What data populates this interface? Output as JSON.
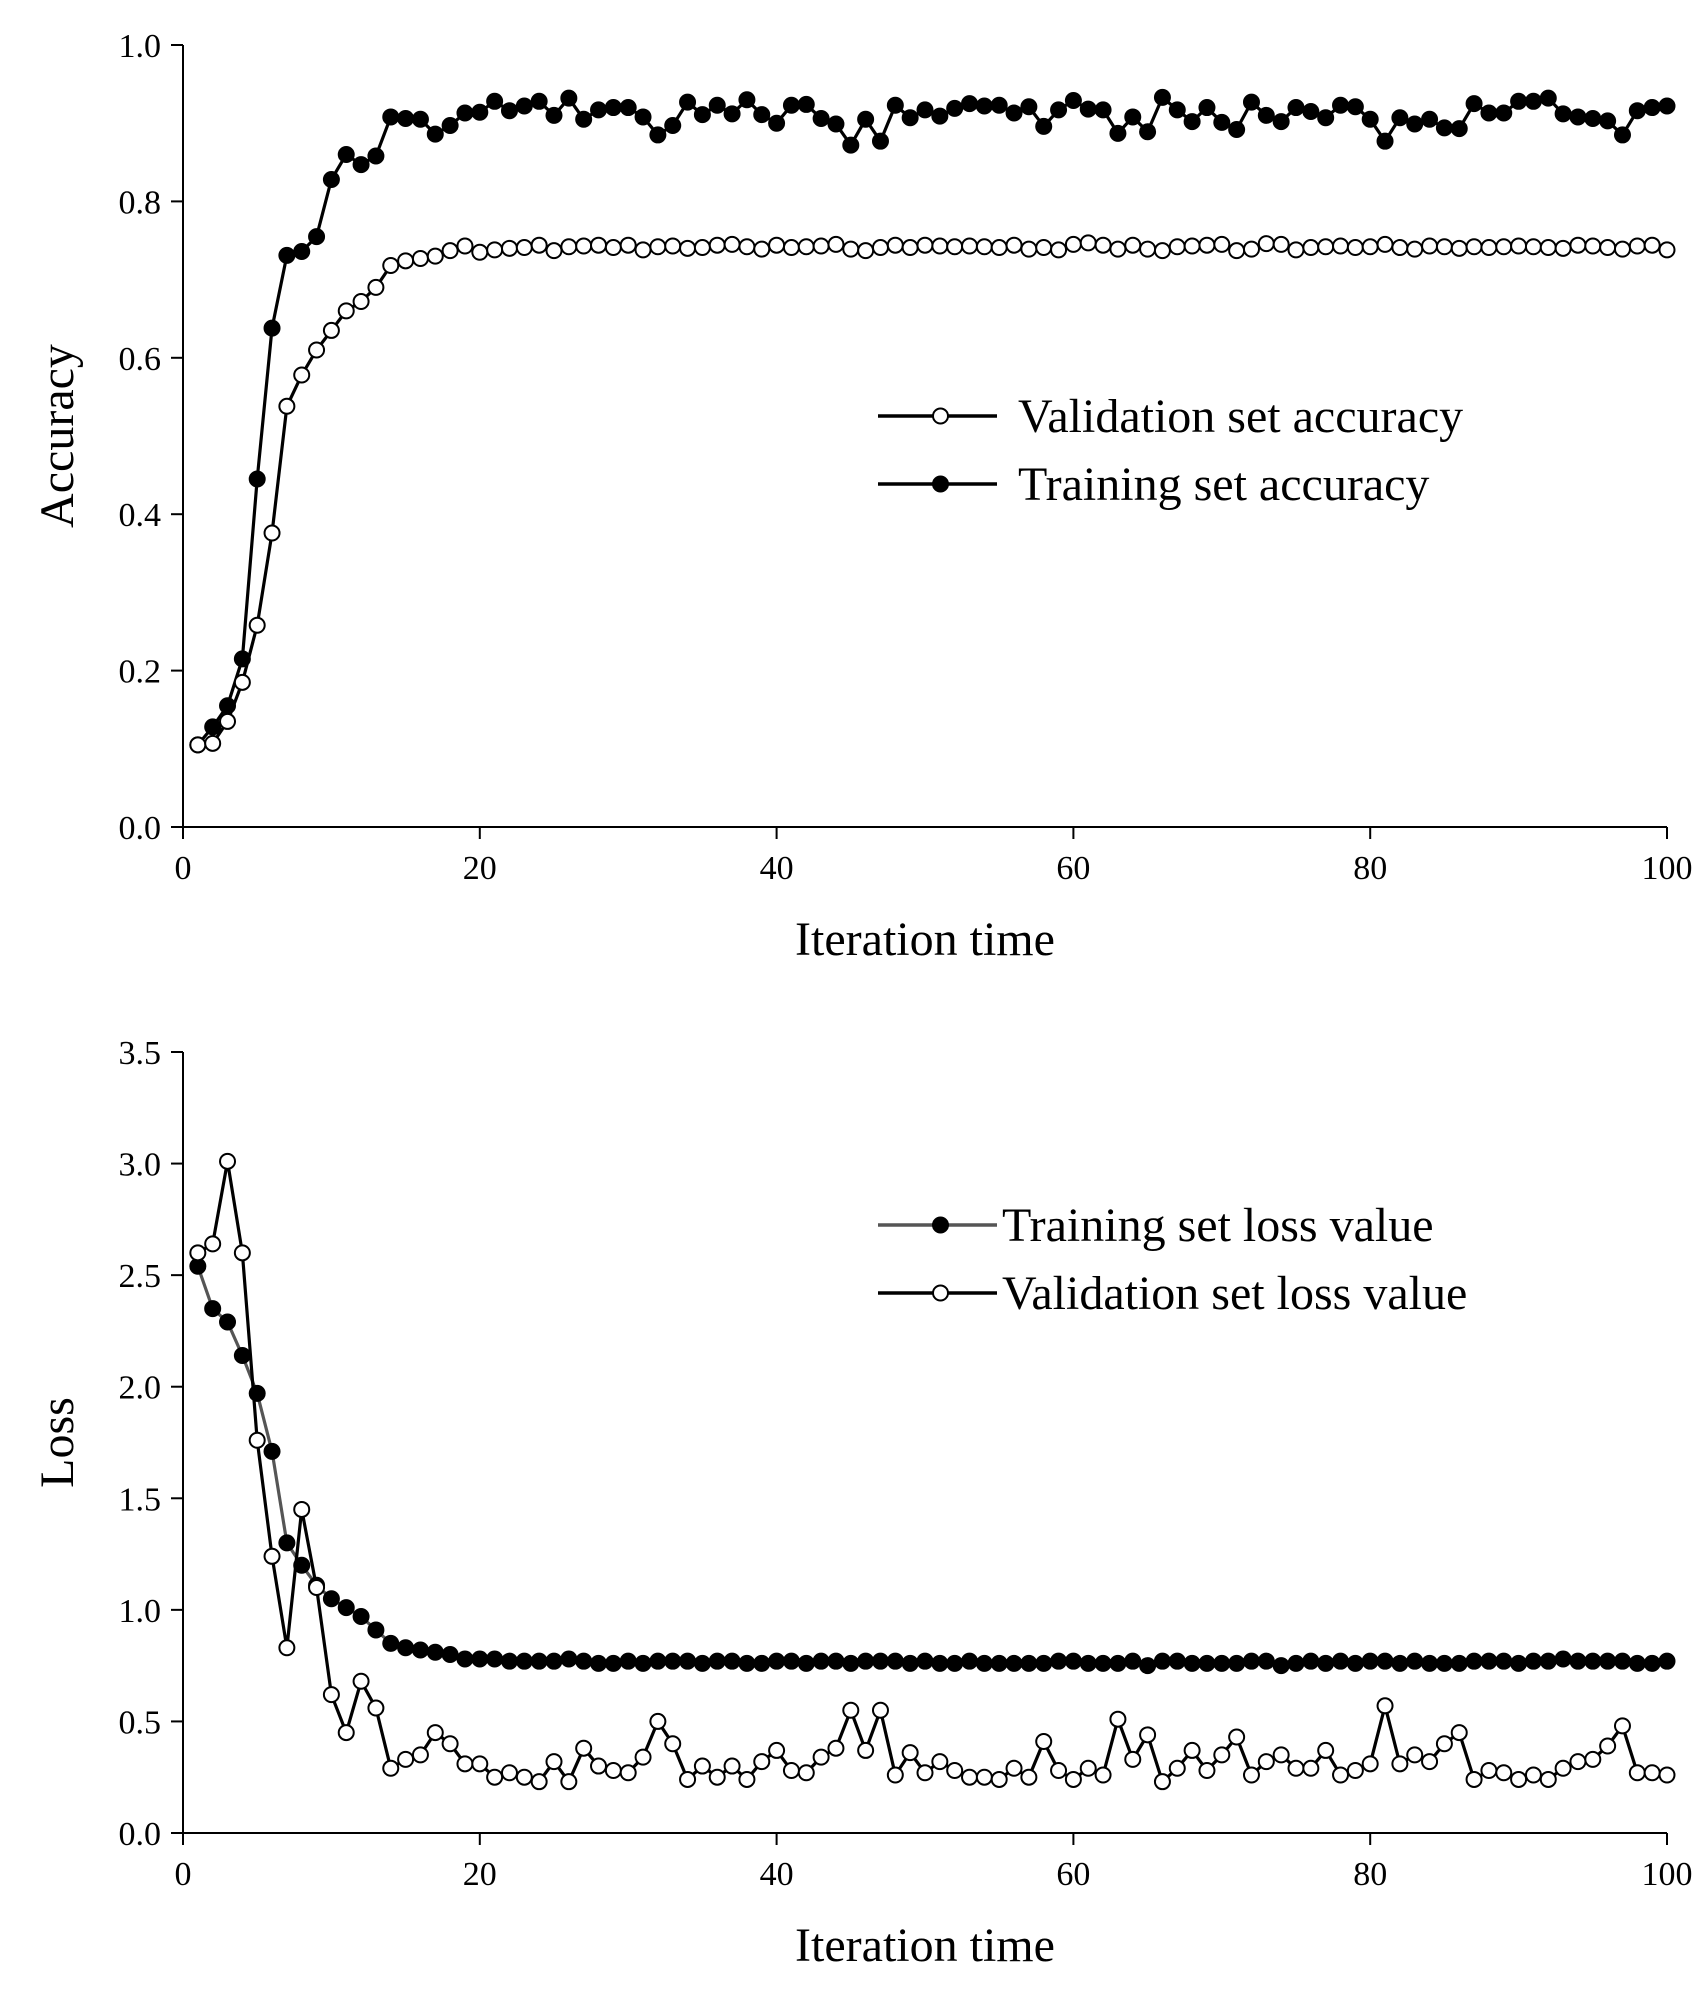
{
  "chart_data": [
    {
      "id": "accuracy",
      "type": "line",
      "xlabel": "Iteration time",
      "ylabel": "Accuracy",
      "xlim": [
        0,
        100
      ],
      "ylim": [
        0.0,
        1.0
      ],
      "x_ticks": [
        0,
        20,
        40,
        60,
        80,
        100
      ],
      "x_tick_labels": [
        "0",
        "20",
        "40",
        "60",
        "80",
        "100"
      ],
      "y_ticks": [
        0.0,
        0.2,
        0.4,
        0.6,
        0.8,
        1.0
      ],
      "y_tick_labels": [
        "0.0",
        "0.2",
        "0.4",
        "0.6",
        "0.8",
        "1.0"
      ],
      "grid": false,
      "legend_position": "right-middle",
      "x": [
        1,
        2,
        3,
        4,
        5,
        6,
        7,
        8,
        9,
        10,
        11,
        12,
        13,
        14,
        15,
        16,
        17,
        18,
        19,
        20,
        21,
        22,
        23,
        24,
        25,
        26,
        27,
        28,
        29,
        30,
        31,
        32,
        33,
        34,
        35,
        36,
        37,
        38,
        39,
        40,
        41,
        42,
        43,
        44,
        45,
        46,
        47,
        48,
        49,
        50,
        51,
        52,
        53,
        54,
        55,
        56,
        57,
        58,
        59,
        60,
        61,
        62,
        63,
        64,
        65,
        66,
        67,
        68,
        69,
        70,
        71,
        72,
        73,
        74,
        75,
        76,
        77,
        78,
        79,
        80,
        81,
        82,
        83,
        84,
        85,
        86,
        87,
        88,
        89,
        90,
        91,
        92,
        93,
        94,
        95,
        96,
        97,
        98,
        99,
        100
      ],
      "series": [
        {
          "name": "Validation set accuracy",
          "marker": "open",
          "color": "#000000",
          "values": [
            0.105,
            0.107,
            0.135,
            0.185,
            0.258,
            0.376,
            0.538,
            0.578,
            0.61,
            0.635,
            0.66,
            0.672,
            0.69,
            0.718,
            0.724,
            0.727,
            0.73,
            0.737,
            0.743,
            0.735,
            0.738,
            0.74,
            0.741,
            0.744,
            0.737,
            0.742,
            0.743,
            0.744,
            0.741,
            0.744,
            0.738,
            0.742,
            0.743,
            0.74,
            0.741,
            0.744,
            0.745,
            0.742,
            0.739,
            0.744,
            0.741,
            0.742,
            0.743,
            0.745,
            0.739,
            0.737,
            0.741,
            0.744,
            0.741,
            0.744,
            0.743,
            0.742,
            0.743,
            0.742,
            0.741,
            0.744,
            0.739,
            0.741,
            0.738,
            0.745,
            0.747,
            0.744,
            0.739,
            0.744,
            0.739,
            0.737,
            0.742,
            0.743,
            0.744,
            0.745,
            0.737,
            0.739,
            0.746,
            0.745,
            0.738,
            0.741,
            0.742,
            0.743,
            0.741,
            0.742,
            0.745,
            0.741,
            0.739,
            0.743,
            0.742,
            0.74,
            0.742,
            0.741,
            0.742,
            0.743,
            0.742,
            0.741,
            0.74,
            0.744,
            0.743,
            0.741,
            0.739,
            0.743,
            0.744,
            0.738
          ]
        },
        {
          "name": "Training set accuracy",
          "marker": "filled",
          "color": "#000000",
          "values": [
            0.105,
            0.128,
            0.155,
            0.215,
            0.445,
            0.638,
            0.731,
            0.736,
            0.755,
            0.828,
            0.86,
            0.847,
            0.858,
            0.908,
            0.906,
            0.905,
            0.886,
            0.897,
            0.913,
            0.914,
            0.928,
            0.916,
            0.922,
            0.928,
            0.91,
            0.932,
            0.905,
            0.917,
            0.92,
            0.92,
            0.908,
            0.885,
            0.897,
            0.927,
            0.911,
            0.923,
            0.912,
            0.93,
            0.911,
            0.9,
            0.923,
            0.924,
            0.906,
            0.899,
            0.872,
            0.905,
            0.877,
            0.923,
            0.907,
            0.917,
            0.909,
            0.919,
            0.925,
            0.922,
            0.923,
            0.913,
            0.921,
            0.896,
            0.917,
            0.929,
            0.918,
            0.917,
            0.887,
            0.908,
            0.889,
            0.933,
            0.917,
            0.902,
            0.92,
            0.901,
            0.892,
            0.927,
            0.91,
            0.902,
            0.92,
            0.915,
            0.907,
            0.923,
            0.921,
            0.905,
            0.877,
            0.907,
            0.899,
            0.905,
            0.894,
            0.893,
            0.925,
            0.913,
            0.913,
            0.928,
            0.928,
            0.932,
            0.912,
            0.908,
            0.906,
            0.903,
            0.885,
            0.916,
            0.92,
            0.922
          ]
        }
      ]
    },
    {
      "id": "loss",
      "type": "line",
      "xlabel": "Iteration time",
      "ylabel": "Loss",
      "xlim": [
        0,
        100
      ],
      "ylim": [
        0.0,
        3.5
      ],
      "x_ticks": [
        0,
        20,
        40,
        60,
        80,
        100
      ],
      "x_tick_labels": [
        "0",
        "20",
        "40",
        "60",
        "80",
        "100"
      ],
      "y_ticks": [
        0.0,
        0.5,
        1.0,
        1.5,
        2.0,
        2.5,
        3.0,
        3.5
      ],
      "y_tick_labels": [
        "0.0",
        "0.5",
        "1.0",
        "1.5",
        "2.0",
        "2.5",
        "3.0",
        "3.5"
      ],
      "grid": false,
      "legend_position": "right-top",
      "x": [
        1,
        2,
        3,
        4,
        5,
        6,
        7,
        8,
        9,
        10,
        11,
        12,
        13,
        14,
        15,
        16,
        17,
        18,
        19,
        20,
        21,
        22,
        23,
        24,
        25,
        26,
        27,
        28,
        29,
        30,
        31,
        32,
        33,
        34,
        35,
        36,
        37,
        38,
        39,
        40,
        41,
        42,
        43,
        44,
        45,
        46,
        47,
        48,
        49,
        50,
        51,
        52,
        53,
        54,
        55,
        56,
        57,
        58,
        59,
        60,
        61,
        62,
        63,
        64,
        65,
        66,
        67,
        68,
        69,
        70,
        71,
        72,
        73,
        74,
        75,
        76,
        77,
        78,
        79,
        80,
        81,
        82,
        83,
        84,
        85,
        86,
        87,
        88,
        89,
        90,
        91,
        92,
        93,
        94,
        95,
        96,
        97,
        98,
        99,
        100
      ],
      "series": [
        {
          "name": "Training set loss value",
          "marker": "filled",
          "color": "#555555",
          "values": [
            2.54,
            2.35,
            2.29,
            2.14,
            1.97,
            1.71,
            1.3,
            1.2,
            1.11,
            1.05,
            1.01,
            0.97,
            0.91,
            0.85,
            0.83,
            0.82,
            0.81,
            0.8,
            0.78,
            0.78,
            0.78,
            0.77,
            0.77,
            0.77,
            0.77,
            0.78,
            0.77,
            0.76,
            0.76,
            0.77,
            0.76,
            0.77,
            0.77,
            0.77,
            0.76,
            0.77,
            0.77,
            0.76,
            0.76,
            0.77,
            0.77,
            0.76,
            0.77,
            0.77,
            0.76,
            0.77,
            0.77,
            0.77,
            0.76,
            0.77,
            0.76,
            0.76,
            0.77,
            0.76,
            0.76,
            0.76,
            0.76,
            0.76,
            0.77,
            0.77,
            0.76,
            0.76,
            0.76,
            0.77,
            0.75,
            0.77,
            0.77,
            0.76,
            0.76,
            0.76,
            0.76,
            0.77,
            0.77,
            0.75,
            0.76,
            0.77,
            0.76,
            0.77,
            0.76,
            0.77,
            0.77,
            0.76,
            0.77,
            0.76,
            0.76,
            0.76,
            0.77,
            0.77,
            0.77,
            0.76,
            0.77,
            0.77,
            0.78,
            0.77,
            0.77,
            0.77,
            0.77,
            0.76,
            0.76,
            0.77
          ]
        },
        {
          "name": "Validation set loss value",
          "marker": "open",
          "color": "#000000",
          "values": [
            2.6,
            2.64,
            3.01,
            2.6,
            1.76,
            1.24,
            0.83,
            1.45,
            1.1,
            0.62,
            0.45,
            0.68,
            0.56,
            0.29,
            0.33,
            0.35,
            0.45,
            0.4,
            0.31,
            0.31,
            0.25,
            0.27,
            0.25,
            0.23,
            0.32,
            0.23,
            0.38,
            0.3,
            0.28,
            0.27,
            0.34,
            0.5,
            0.4,
            0.24,
            0.3,
            0.25,
            0.3,
            0.24,
            0.32,
            0.37,
            0.28,
            0.27,
            0.34,
            0.38,
            0.55,
            0.37,
            0.55,
            0.26,
            0.36,
            0.27,
            0.32,
            0.28,
            0.25,
            0.25,
            0.24,
            0.29,
            0.25,
            0.41,
            0.28,
            0.24,
            0.29,
            0.26,
            0.51,
            0.33,
            0.44,
            0.23,
            0.29,
            0.37,
            0.28,
            0.35,
            0.43,
            0.26,
            0.32,
            0.35,
            0.29,
            0.29,
            0.37,
            0.26,
            0.28,
            0.31,
            0.57,
            0.31,
            0.35,
            0.32,
            0.4,
            0.45,
            0.24,
            0.28,
            0.27,
            0.24,
            0.26,
            0.24,
            0.29,
            0.32,
            0.33,
            0.39,
            0.48,
            0.27,
            0.27,
            0.26
          ]
        }
      ]
    }
  ]
}
